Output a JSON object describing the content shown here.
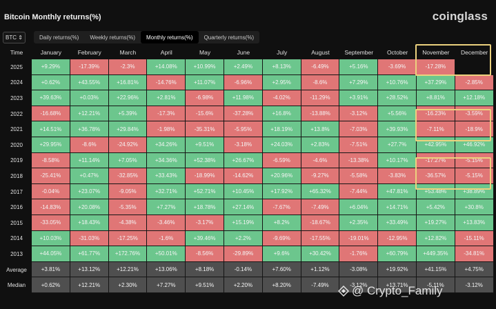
{
  "title": "Bitcoin Monthly returns(%)",
  "brand": "coinglass",
  "coin_select": "BTC",
  "tabs": [
    {
      "label": "Daily returns(%)",
      "active": false
    },
    {
      "label": "Weekly returns(%)",
      "active": false
    },
    {
      "label": "Monthly returns(%)",
      "active": true
    },
    {
      "label": "Quarterly returns(%)",
      "active": false
    }
  ],
  "columns": [
    "Time",
    "January",
    "February",
    "March",
    "April",
    "May",
    "June",
    "July",
    "August",
    "September",
    "October",
    "November",
    "December"
  ],
  "rows": [
    {
      "year": "2025",
      "values": [
        "+9.29%",
        "-17.39%",
        "-2.3%",
        "+14.08%",
        "+10.99%",
        "+2.49%",
        "+8.13%",
        "-6.49%",
        "+5.16%",
        "-3.69%",
        "-17.28%",
        ""
      ]
    },
    {
      "year": "2024",
      "values": [
        "+0.62%",
        "+43.55%",
        "+16.81%",
        "-14.76%",
        "+11.07%",
        "-6.96%",
        "+2.95%",
        "-8.6%",
        "+7.29%",
        "+10.76%",
        "+37.29%",
        "-2.85%"
      ]
    },
    {
      "year": "2023",
      "values": [
        "+39.63%",
        "+0.03%",
        "+22.96%",
        "+2.81%",
        "-6.98%",
        "+11.98%",
        "-4.02%",
        "-11.29%",
        "+3.91%",
        "+28.52%",
        "+8.81%",
        "+12.18%"
      ]
    },
    {
      "year": "2022",
      "values": [
        "-16.68%",
        "+12.21%",
        "+5.39%",
        "-17.3%",
        "-15.6%",
        "-37.28%",
        "+16.8%",
        "-13.88%",
        "-3.12%",
        "+5.56%",
        "-16.23%",
        "-3.59%"
      ]
    },
    {
      "year": "2021",
      "values": [
        "+14.51%",
        "+36.78%",
        "+29.84%",
        "-1.98%",
        "-35.31%",
        "-5.95%",
        "+18.19%",
        "+13.8%",
        "-7.03%",
        "+39.93%",
        "-7.11%",
        "-18.9%"
      ]
    },
    {
      "year": "2020",
      "values": [
        "+29.95%",
        "-8.6%",
        "-24.92%",
        "+34.26%",
        "+9.51%",
        "-3.18%",
        "+24.03%",
        "+2.83%",
        "-7.51%",
        "+27.7%",
        "+42.95%",
        "+46.92%"
      ]
    },
    {
      "year": "2019",
      "values": [
        "-8.58%",
        "+11.14%",
        "+7.05%",
        "+34.36%",
        "+52.38%",
        "+26.67%",
        "-6.59%",
        "-4.6%",
        "-13.38%",
        "+10.17%",
        "-17.27%",
        "-5.15%"
      ]
    },
    {
      "year": "2018",
      "values": [
        "-25.41%",
        "+0.47%",
        "-32.85%",
        "+33.43%",
        "-18.99%",
        "-14.62%",
        "+20.96%",
        "-9.27%",
        "-5.58%",
        "-3.83%",
        "-36.57%",
        "-5.15%"
      ]
    },
    {
      "year": "2017",
      "values": [
        "-0.04%",
        "+23.07%",
        "-9.05%",
        "+32.71%",
        "+52.71%",
        "+10.45%",
        "+17.92%",
        "+65.32%",
        "-7.44%",
        "+47.81%",
        "+53.48%",
        "+38.89%"
      ]
    },
    {
      "year": "2016",
      "values": [
        "-14.83%",
        "+20.08%",
        "-5.35%",
        "+7.27%",
        "+18.78%",
        "+27.14%",
        "-7.67%",
        "-7.49%",
        "+6.04%",
        "+14.71%",
        "+5.42%",
        "+30.8%"
      ]
    },
    {
      "year": "2015",
      "values": [
        "-33.05%",
        "+18.43%",
        "-4.38%",
        "-3.46%",
        "-3.17%",
        "+15.19%",
        "+8.2%",
        "-18.67%",
        "+2.35%",
        "+33.49%",
        "+19.27%",
        "+13.83%"
      ]
    },
    {
      "year": "2014",
      "values": [
        "+10.03%",
        "-31.03%",
        "-17.25%",
        "-1.6%",
        "+39.46%",
        "+2.2%",
        "-9.69%",
        "-17.55%",
        "-19.01%",
        "-12.95%",
        "+12.82%",
        "-15.11%"
      ]
    },
    {
      "year": "2013",
      "values": [
        "+44.05%",
        "+61.77%",
        "+172.76%",
        "+50.01%",
        "-8.56%",
        "-29.89%",
        "+9.6%",
        "+30.42%",
        "-1.76%",
        "+60.79%",
        "+449.35%",
        "-34.81%"
      ]
    }
  ],
  "summary": [
    {
      "label": "Average",
      "values": [
        "+3.81%",
        "+13.12%",
        "+12.21%",
        "+13.06%",
        "+8.18%",
        "-0.14%",
        "+7.60%",
        "+1.12%",
        "-3.08%",
        "+19.92%",
        "+41.15%",
        "+4.75%"
      ]
    },
    {
      "label": "Median",
      "values": [
        "+0.62%",
        "+12.21%",
        "+2.30%",
        "+7.27%",
        "+9.51%",
        "+2.20%",
        "+8.20%",
        "-7.49%",
        "-3.12%",
        "+13.71%",
        "-5.11%",
        "-3.12%"
      ]
    }
  ],
  "watermark": "@ Crypto_Family",
  "colors": {
    "positive": "#6cc68d",
    "negative": "#e07676",
    "highlight": "#ecd27e",
    "summary": "#4f4f4f"
  }
}
